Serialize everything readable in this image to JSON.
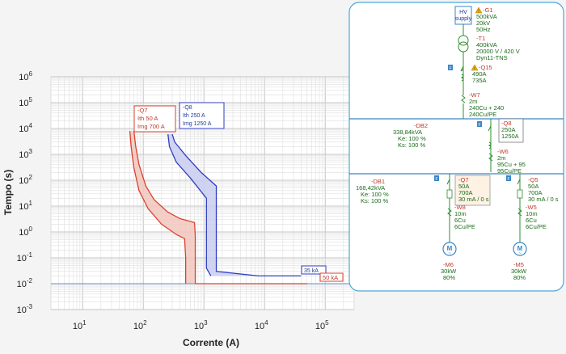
{
  "chart_data": {
    "type": "line",
    "xlabel": "Corrente (A)",
    "ylabel": "Tempo (s)",
    "xscale": "log",
    "yscale": "log",
    "xlim": [
      3,
      300000
    ],
    "ylim": [
      0.001,
      1000000
    ],
    "grid": true,
    "x_ticks": [
      {
        "base": "10",
        "exp": "1",
        "value": 10
      },
      {
        "base": "10",
        "exp": "2",
        "value": 100
      },
      {
        "base": "10",
        "exp": "3",
        "value": 1000
      },
      {
        "base": "10",
        "exp": "4",
        "value": 10000
      },
      {
        "base": "10",
        "exp": "5",
        "value": 100000
      }
    ],
    "y_ticks": [
      {
        "base": "10",
        "exp": "-3",
        "value": 0.001
      },
      {
        "base": "10",
        "exp": "-2",
        "value": 0.01
      },
      {
        "base": "10",
        "exp": "-1",
        "value": 0.1
      },
      {
        "base": "10",
        "exp": "0",
        "value": 1
      },
      {
        "base": "10",
        "exp": "1",
        "value": 10
      },
      {
        "base": "10",
        "exp": "2",
        "value": 100
      },
      {
        "base": "10",
        "exp": "3",
        "value": 1000
      },
      {
        "base": "10",
        "exp": "4",
        "value": 10000
      },
      {
        "base": "10",
        "exp": "5",
        "value": 100000
      },
      {
        "base": "10",
        "exp": "6",
        "value": 1000000
      }
    ],
    "series": [
      {
        "name": "-Q7",
        "color": "#d9432f",
        "fill": "#f2c7bd",
        "upper": [
          [
            70,
            8000
          ],
          [
            75,
            2000
          ],
          [
            85,
            400
          ],
          [
            110,
            60
          ],
          [
            150,
            18
          ],
          [
            250,
            6
          ],
          [
            400,
            3.3
          ],
          [
            700,
            2.3
          ],
          [
            720,
            0.7
          ],
          [
            720,
            0.01
          ]
        ],
        "lower": [
          [
            60,
            8000
          ],
          [
            63,
            2000
          ],
          [
            70,
            300
          ],
          [
            85,
            40
          ],
          [
            120,
            8
          ],
          [
            200,
            2
          ],
          [
            350,
            0.8
          ],
          [
            480,
            0.55
          ],
          [
            500,
            0.1
          ],
          [
            500,
            0.01
          ]
        ]
      },
      {
        "name": "-Q8",
        "color": "#2f3fbf",
        "fill": "#c9cdf0",
        "upper": [
          [
            300,
            6000
          ],
          [
            330,
            3000
          ],
          [
            500,
            900
          ],
          [
            900,
            200
          ],
          [
            1600,
            60
          ],
          [
            1600,
            0.03
          ],
          [
            8000,
            0.02
          ],
          [
            40000,
            0.02
          ]
        ],
        "lower": [
          [
            255,
            6000
          ],
          [
            270,
            2000
          ],
          [
            350,
            500
          ],
          [
            600,
            120
          ],
          [
            1100,
            20
          ],
          [
            1100,
            0.04
          ],
          [
            1300,
            0.02
          ]
        ]
      }
    ],
    "reference_line": {
      "y": 0.01,
      "color": "#5a8fd0"
    },
    "annotations": [
      {
        "id": "q7",
        "lines": [
          "-Q7",
          "Ith  50 A",
          "Img  700 A"
        ],
        "color": "#d9432f"
      },
      {
        "id": "q8",
        "lines": [
          "-Q8",
          "Ith  250 A",
          "Img  1250 A"
        ],
        "color": "#2f3fbf"
      },
      {
        "id": "ka35",
        "text": "35 kA",
        "color": "#2f3fbf"
      },
      {
        "id": "ka50",
        "text": "50 kA",
        "color": "#d9432f"
      }
    ]
  },
  "diagram": {
    "hv_supply": {
      "line1": "HV",
      "line2": "supply"
    },
    "g1": {
      "name": "-G1",
      "lines": [
        "500kVA",
        "20kV",
        "50Hz"
      ]
    },
    "t1": {
      "name": "-T1",
      "lines": [
        "400kVA",
        "20000 V / 420 V",
        "Dyn11-TNS"
      ]
    },
    "q15": {
      "name": "-Q15",
      "lines": [
        "490A",
        "735A"
      ]
    },
    "w7": {
      "name": "-W7",
      "lines": [
        "2m",
        "240Cu + 240",
        "240Cu/PE"
      ]
    },
    "db2": {
      "name": "-DB2",
      "lines": [
        "338,84kVA",
        "Ke: 100 %",
        "Ks: 100 %"
      ]
    },
    "q8": {
      "name": "-Q8",
      "lines": [
        "250A",
        "1250A"
      ]
    },
    "w6": {
      "name": "-W6",
      "lines": [
        "2m",
        "95Cu + 95",
        "95Cu/PE"
      ]
    },
    "db1": {
      "name": "-DB1",
      "lines": [
        "168,42kVA",
        "Ke: 100 %",
        "Ks: 100 %"
      ]
    },
    "q7": {
      "name": "-Q7",
      "lines": [
        "50A",
        "700A",
        "30 mA / 0 s"
      ]
    },
    "q5": {
      "name": "-Q5",
      "lines": [
        "50A",
        "700A",
        "30 mA / 0 s"
      ]
    },
    "w8": {
      "name": "-W8",
      "lines": [
        "10m",
        "6Cu",
        "6Cu/PE"
      ]
    },
    "w5": {
      "name": "-W5",
      "lines": [
        "10m",
        "6Cu",
        "6Cu/PE"
      ]
    },
    "m6": {
      "name": "-M6",
      "lines": [
        "30kW",
        "80%"
      ]
    },
    "m5": {
      "name": "-M5",
      "lines": [
        "30kW",
        "80%"
      ]
    },
    "motor_letter": "M",
    "motor_symbol": "~",
    "flag": "F",
    "warn": "!"
  },
  "colors": {
    "panel_border": "#49a9d9",
    "busbar": "#3a86c7",
    "device": "#2d8f2d",
    "red_text": "#c0392b",
    "warning": "#f2a900"
  }
}
